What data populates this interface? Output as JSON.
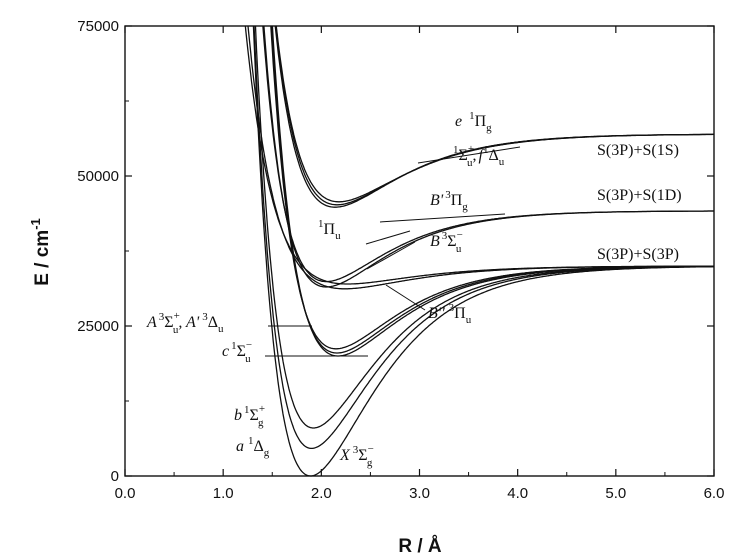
{
  "chart_data": {
    "type": "line",
    "xlabel": "R / Å",
    "ylabel": "E / cm",
    "ylabel_sup": "-1",
    "xlim": [
      0,
      6
    ],
    "ylim": [
      0,
      75000
    ],
    "x_ticks": [
      "0.0",
      "1.0",
      "2.0",
      "3.0",
      "4.0",
      "5.0",
      "6.0"
    ],
    "y_ticks": [
      "0",
      "25000",
      "50000",
      "75000"
    ],
    "grid": false,
    "asymptotes": [
      {
        "label": "S(3P)+S(1S)",
        "value": 57000
      },
      {
        "label": "S(3P)+S(1D)",
        "value": 44200
      },
      {
        "label": "S(3P)+S(3P)",
        "value": 35000
      }
    ],
    "series": [
      {
        "name": "X 3Σg-",
        "Re": 1.89,
        "Te": 0,
        "De": 35000,
        "a": 1.55
      },
      {
        "name": "a 1Δg",
        "Re": 1.9,
        "Te": 4600,
        "De": 30400,
        "a": 1.58
      },
      {
        "name": "b 1Σg+",
        "Re": 1.92,
        "Te": 8000,
        "De": 27000,
        "a": 1.6
      },
      {
        "name": "c 1Σu-",
        "Re": 2.17,
        "Te": 20000,
        "De": 15000,
        "a": 1.6
      },
      {
        "name": "A' 3Δu",
        "Re": 2.16,
        "Te": 20500,
        "De": 14500,
        "a": 1.62
      },
      {
        "name": "A 3Σu+",
        "Re": 2.15,
        "Te": 21200,
        "De": 13800,
        "a": 1.64
      },
      {
        "name": "B'' 3Πu",
        "Re": 2.24,
        "Te": 31200,
        "De": 3800,
        "a": 1.5
      },
      {
        "name": "1Πu",
        "Re": 2.27,
        "Te": 32000,
        "De": 3000,
        "a": 1.5
      },
      {
        "name": "B 3Σu-",
        "Re": 2.05,
        "Te": 31500,
        "De": 12700,
        "a": 1.65
      },
      {
        "name": "B' 3Πg",
        "Re": 2.05,
        "Te": 32400,
        "De": 11800,
        "a": 1.65
      },
      {
        "name": "f 1Δu",
        "Re": 2.14,
        "Te": 44800,
        "De": 12200,
        "a": 1.55
      },
      {
        "name": "1Σu+",
        "Re": 2.16,
        "Te": 45200,
        "De": 11800,
        "a": 1.53
      },
      {
        "name": "e 1Πg",
        "Re": 2.18,
        "Te": 45700,
        "De": 11300,
        "a": 1.5
      }
    ],
    "labels": {
      "e1Pig": "e",
      "sigma_f": ",",
      "Bp3Pig": "B'",
      "one_Pi_u": "1",
      "B3Sig": "B",
      "Bpp3Piu": "B''",
      "A3Sig": "A",
      "Ap3Delta": ", A'",
      "c1Sig": "c",
      "b1Sig": "b",
      "a1Delta": "a",
      "X3Sig": "X"
    }
  }
}
